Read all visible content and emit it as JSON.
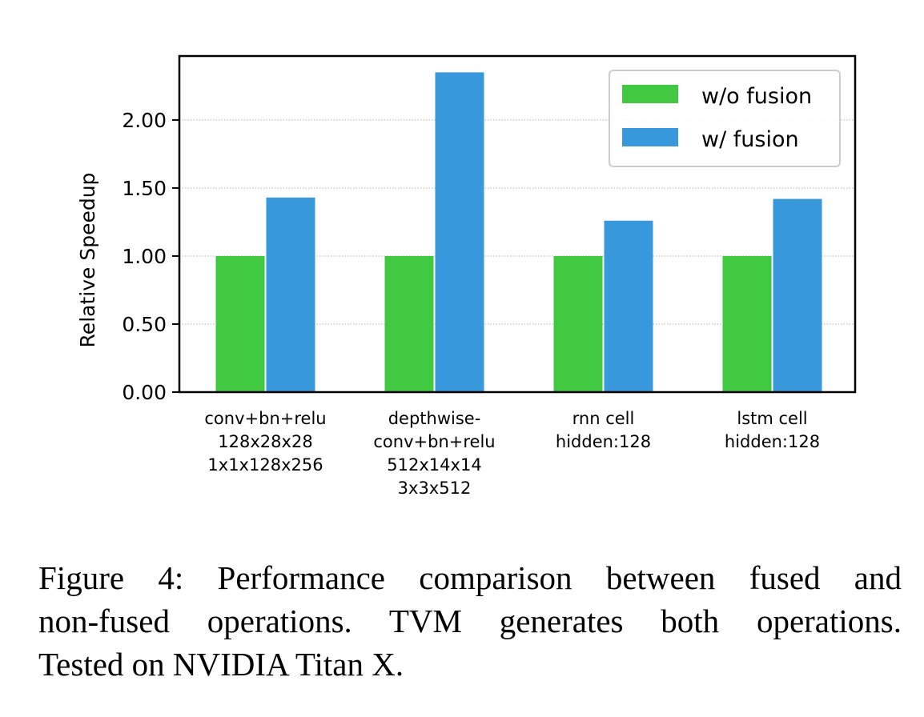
{
  "chart_data": {
    "type": "bar",
    "title": "",
    "xlabel": "",
    "ylabel": "Relative Speedup",
    "ylim": [
      0,
      2.47
    ],
    "yticks": [
      0.0,
      0.5,
      1.0,
      1.5,
      2.0
    ],
    "ytick_labels": [
      "0.00",
      "0.50",
      "1.00",
      "1.50",
      "2.00"
    ],
    "grid": "horizontal dotted",
    "legend_position": "top-right",
    "categories": [
      [
        "conv+bn+relu",
        "128x28x28",
        "1x1x128x256"
      ],
      [
        "depthwise-",
        "conv+bn+relu",
        "512x14x14",
        "3x3x512"
      ],
      [
        "rnn cell",
        "hidden:128"
      ],
      [
        "lstm cell",
        "hidden:128"
      ]
    ],
    "series": [
      {
        "name": "w/o fusion",
        "color": "#41c841",
        "values": [
          1.0,
          1.0,
          1.0,
          1.0
        ]
      },
      {
        "name": "w/ fusion",
        "color": "#3898dc",
        "values": [
          1.43,
          2.35,
          1.26,
          1.42
        ]
      }
    ]
  },
  "caption": {
    "lines": [
      "Figure 4:  Performance comparison between fused and",
      "non-fused operations.  TVM generates both operations.",
      "Tested on NVIDIA Titan X."
    ]
  }
}
